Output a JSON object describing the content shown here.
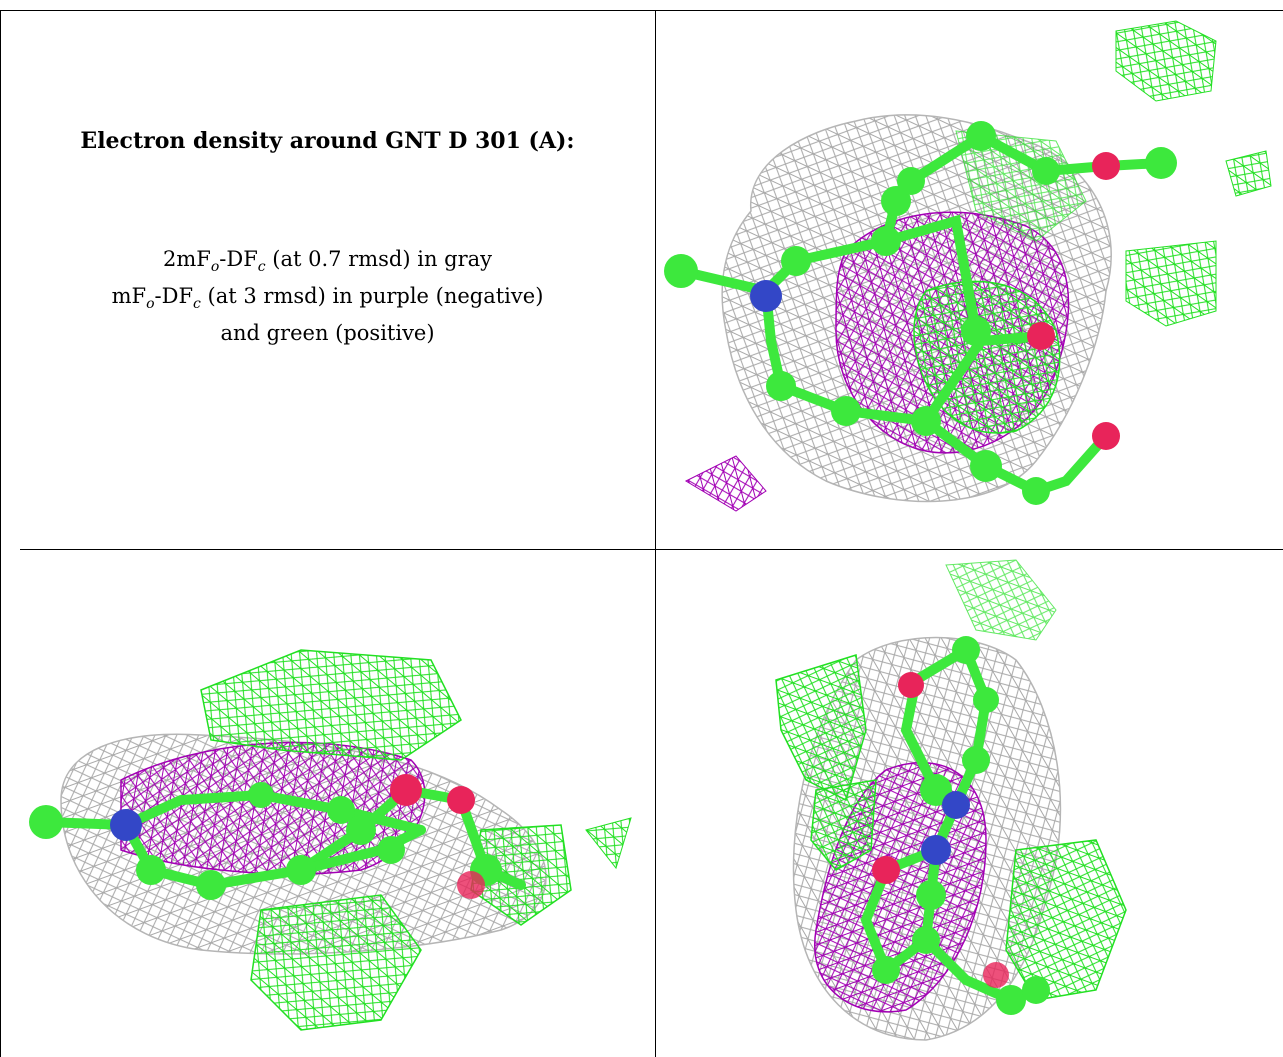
{
  "caption": {
    "title": "Electron density around GNT D 301 (A):",
    "line1": {
      "pre": "2mF",
      "sub1": "o",
      "mid": "-DF",
      "sub2": "c",
      "post": " (at 0.7 rmsd) in gray"
    },
    "line2": {
      "pre": "mF",
      "sub1": "o",
      "mid": "-DF",
      "sub2": "c",
      "post": " (at 3 rmsd) in purple (negative)"
    },
    "line3": "and green (positive)"
  },
  "colors": {
    "gray_mesh": "#9e9e9e",
    "purple_mesh": "#a200b4",
    "green_mesh": "#22e022",
    "carbon": "#3de83d",
    "nitrogen": "#3347c7",
    "oxygen": "#e8245a"
  }
}
